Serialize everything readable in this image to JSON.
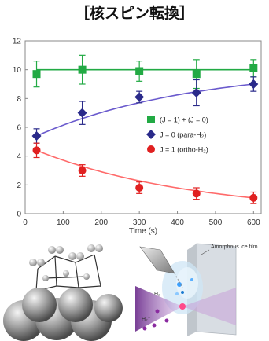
{
  "title": "［核スピン転換］",
  "chart_data": {
    "type": "scatter",
    "x": [
      30,
      150,
      300,
      450,
      600
    ],
    "xlabel": "Time (s)",
    "ylabel": "",
    "xlim": [
      0,
      620
    ],
    "ylim": [
      0,
      12
    ],
    "xticks": [
      "0",
      "100",
      "200",
      "300",
      "400",
      "500",
      "600"
    ],
    "yticks": [
      "0",
      "2",
      "4",
      "6",
      "8",
      "10",
      "12"
    ],
    "grid": false,
    "legend_position": "center-right",
    "series": [
      {
        "name": "(J = 1) + (J = 0)",
        "marker": "square",
        "color": "#22aa44",
        "values": [
          9.7,
          10.0,
          9.9,
          9.7,
          10.1
        ],
        "errors": [
          0.9,
          1.0,
          0.7,
          1.0,
          0.6
        ],
        "fit": [
          10.0,
          10.0
        ]
      },
      {
        "name": "J = 0 (para-H₂)",
        "marker": "diamond",
        "color": "#2a2a8a",
        "values": [
          5.4,
          7.0,
          8.1,
          8.4,
          9.0
        ],
        "errors": [
          0.5,
          0.8,
          0.4,
          0.9,
          0.5
        ],
        "fit_color": "#6a5acd"
      },
      {
        "name": "J = 1 (ortho-H₂)",
        "marker": "circle",
        "color": "#e02020",
        "values": [
          4.4,
          3.0,
          1.8,
          1.4,
          1.1
        ],
        "errors": [
          0.5,
          0.4,
          0.4,
          0.4,
          0.4
        ],
        "fit_color": "#ff6a6a"
      }
    ]
  },
  "illustrations": {
    "film_label": "Amorphous ice film",
    "h2_label": "H₂",
    "h2plus_label": "H₂⁺"
  }
}
